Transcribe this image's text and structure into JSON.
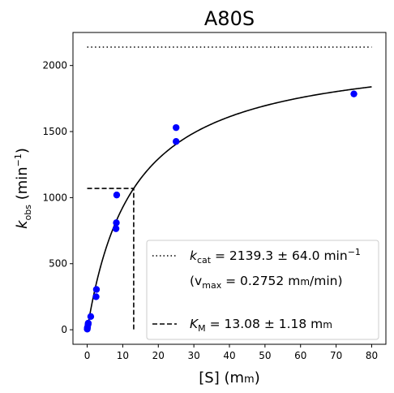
{
  "chart_data": {
    "type": "scatter",
    "title": "A80S",
    "xlabel_parts": {
      "main": "[S] (m",
      "unit_sc": "m",
      "close": ")"
    },
    "ylabel_parts": {
      "k": "k",
      "sub": "obs",
      "unit": " (min",
      "sup": "−1",
      "close": ")"
    },
    "xlim": [
      -4,
      84
    ],
    "ylim": [
      -110,
      2250
    ],
    "xticks": [
      0,
      10,
      20,
      30,
      40,
      50,
      60,
      70,
      80
    ],
    "yticks": [
      0,
      500,
      1000,
      1500,
      2000
    ],
    "grid": false,
    "legend_position": "lower-right",
    "colors": {
      "points": "#0000ff",
      "fit": "#000000",
      "kcat_line": "#000000",
      "km_line": "#000000"
    },
    "points": {
      "x": [
        0.02,
        0.05,
        0.1,
        0.25,
        0.3,
        1.0,
        2.5,
        2.6,
        8.1,
        8.2,
        8.3,
        25.0,
        25.0,
        75.0
      ],
      "y": [
        5,
        15,
        20,
        40,
        50,
        100,
        250,
        305,
        765,
        810,
        1020,
        1425,
        1530,
        1785
      ]
    },
    "fit": {
      "kcat": 2139.3,
      "km": 13.08,
      "x_range": [
        0,
        80
      ]
    },
    "kcat_line": {
      "y": 2139.3,
      "x_range": [
        0,
        80
      ]
    },
    "km_line": {
      "x": 13.08,
      "y": 1069.65,
      "x_start": 0
    },
    "legend": {
      "kcat_k": "k",
      "kcat_sub": "cat",
      "kcat_value": " = 2139.3 ± 64.0 min",
      "kcat_sup": "−1",
      "vmax_open": "(v",
      "vmax_sub": "max",
      "vmax_value": " = 0.2752 m",
      "vmax_unit_sc": "m",
      "vmax_tail": "/min)",
      "km_k": "K",
      "km_sub": "M",
      "km_value": " = 13.08 ± 1.18 m",
      "km_unit_sc": "m"
    }
  }
}
